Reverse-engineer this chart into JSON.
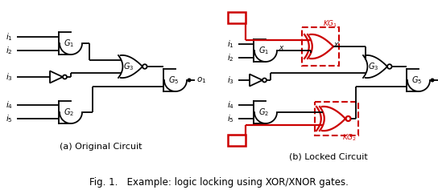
{
  "fig_caption": "Fig. 1.   Example: logic locking using XOR/XNOR gates.",
  "sub_a_label": "(a) Original Circuit",
  "sub_b_label": "(b) Locked Circuit",
  "black": "#000000",
  "red": "#cc0000",
  "white": "#ffffff",
  "bg_color": "#ffffff",
  "lw": 1.3,
  "lw_thick": 1.6
}
